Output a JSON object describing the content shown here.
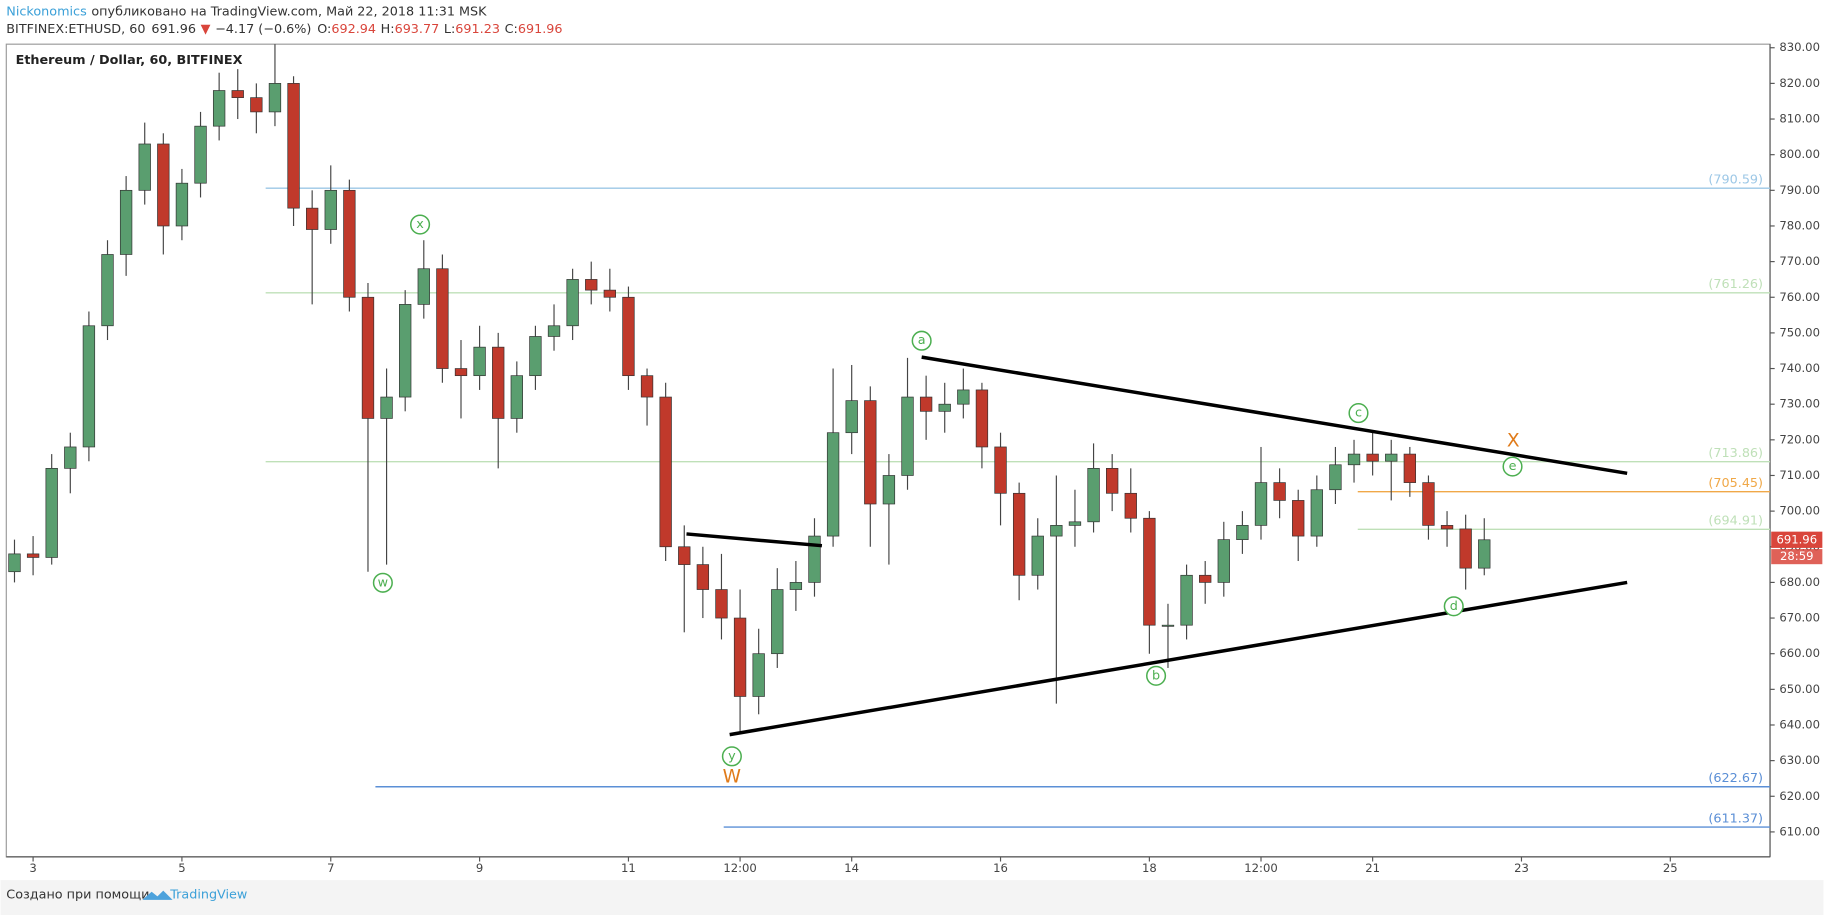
{
  "header": {
    "author": "Nickonomics",
    "published": "опубликовано на TradingView.com, Май 22, 2018 11:31 MSK",
    "symbol": "BITFINEX:ETHUSD, 60",
    "last": 691.96,
    "arrow": "▼",
    "change": "−4.17 (−0.6%)",
    "o_label": "O:",
    "open": 692.94,
    "h_label": "H:",
    "high": 693.77,
    "l_label": "L:",
    "low": 691.23,
    "c_label": "C:",
    "close": 691.96
  },
  "chart_data": {
    "type": "candlestick",
    "title": "Ethereum / Dollar, 60, BITFINEX",
    "up_color": "#5a9e6f",
    "down_color": "#c0392b",
    "wick_color": "#444444",
    "x": [
      2.75,
      3,
      3.25,
      3.5,
      3.75,
      4,
      4.25,
      4.5,
      4.75,
      5,
      5.25,
      5.5,
      5.75,
      6,
      6.25,
      6.5,
      6.75,
      7,
      7.25,
      7.5,
      7.75,
      8,
      8.25,
      8.5,
      8.75,
      9,
      9.25,
      9.5,
      9.75,
      10,
      10.25,
      10.5,
      10.75,
      11,
      11.25,
      11.5,
      11.75,
      12,
      12.25,
      12.5,
      12.75,
      13,
      13.25,
      13.5,
      13.75,
      14,
      14.25,
      14.5,
      14.75,
      15,
      15.25,
      15.5,
      15.75,
      16,
      16.25,
      16.5,
      16.75,
      17,
      17.25,
      17.5,
      17.75,
      18,
      18.25,
      18.5,
      18.75,
      19,
      19.25,
      19.5,
      19.75,
      20,
      20.25,
      20.5,
      20.75,
      21,
      21.25,
      21.5,
      21.75,
      22,
      22.25,
      22.5
    ],
    "ohlc": [
      [
        683,
        692,
        680,
        688
      ],
      [
        688,
        693,
        682,
        687
      ],
      [
        687,
        716,
        685,
        712
      ],
      [
        712,
        722,
        705,
        718
      ],
      [
        718,
        756,
        714,
        752
      ],
      [
        752,
        776,
        748,
        772
      ],
      [
        772,
        794,
        766,
        790
      ],
      [
        790,
        809,
        786,
        803
      ],
      [
        803,
        806,
        772,
        780
      ],
      [
        780,
        796,
        776,
        792
      ],
      [
        792,
        812,
        788,
        808
      ],
      [
        808,
        823,
        804,
        818
      ],
      [
        818,
        824,
        810,
        816
      ],
      [
        816,
        820,
        806,
        812
      ],
      [
        812,
        831,
        808,
        820
      ],
      [
        820,
        822,
        780,
        785
      ],
      [
        785,
        790,
        758,
        779
      ],
      [
        779,
        797,
        775,
        790
      ],
      [
        790,
        793,
        756,
        760
      ],
      [
        760,
        764,
        683,
        726
      ],
      [
        726,
        740,
        685,
        732
      ],
      [
        732,
        762,
        728,
        758
      ],
      [
        758,
        776,
        754,
        768
      ],
      [
        768,
        772,
        736,
        740
      ],
      [
        740,
        748,
        726,
        738
      ],
      [
        738,
        752,
        734,
        746
      ],
      [
        746,
        750,
        712,
        726
      ],
      [
        726,
        742,
        722,
        738
      ],
      [
        738,
        752,
        734,
        749
      ],
      [
        749,
        758,
        745,
        752
      ],
      [
        752,
        768,
        748,
        765
      ],
      [
        765,
        770,
        758,
        762
      ],
      [
        762,
        768,
        756,
        760
      ],
      [
        760,
        763,
        734,
        738
      ],
      [
        738,
        740,
        724,
        732
      ],
      [
        732,
        736,
        686,
        690
      ],
      [
        690,
        696,
        666,
        685
      ],
      [
        685,
        690,
        670,
        678
      ],
      [
        678,
        688,
        664,
        670
      ],
      [
        670,
        678,
        638,
        648
      ],
      [
        648,
        667,
        643,
        660
      ],
      [
        660,
        684,
        656,
        678
      ],
      [
        678,
        686,
        672,
        680
      ],
      [
        680,
        698,
        676,
        693
      ],
      [
        693,
        740,
        690,
        722
      ],
      [
        722,
        741,
        716,
        731
      ],
      [
        731,
        735,
        690,
        702
      ],
      [
        702,
        716,
        685,
        710
      ],
      [
        710,
        743,
        706,
        732
      ],
      [
        732,
        738,
        720,
        728
      ],
      [
        728,
        736,
        722,
        730
      ],
      [
        730,
        740,
        726,
        734
      ],
      [
        734,
        736,
        712,
        718
      ],
      [
        718,
        722,
        696,
        705
      ],
      [
        705,
        708,
        675,
        682
      ],
      [
        682,
        698,
        678,
        693
      ],
      [
        693,
        710,
        646,
        696
      ],
      [
        696,
        706,
        690,
        697
      ],
      [
        697,
        719,
        694,
        712
      ],
      [
        712,
        716,
        700,
        705
      ],
      [
        705,
        712,
        694,
        698
      ],
      [
        698,
        700,
        660,
        668
      ],
      [
        668,
        674,
        656,
        668
      ],
      [
        668,
        685,
        664,
        682
      ],
      [
        682,
        686,
        674,
        680
      ],
      [
        680,
        697,
        676,
        692
      ],
      [
        692,
        700,
        688,
        696
      ],
      [
        696,
        718,
        692,
        708
      ],
      [
        708,
        712,
        698,
        703
      ],
      [
        703,
        706,
        686,
        693
      ],
      [
        693,
        710,
        690,
        706
      ],
      [
        706,
        718,
        702,
        713
      ],
      [
        713,
        720,
        708,
        716
      ],
      [
        716,
        722,
        710,
        714
      ],
      [
        714,
        720,
        703,
        716
      ],
      [
        716,
        718,
        704,
        708
      ],
      [
        708,
        710,
        692,
        696
      ],
      [
        696,
        700,
        690,
        695
      ],
      [
        695,
        699,
        678,
        684
      ],
      [
        684,
        698,
        682,
        691.96
      ]
    ],
    "xlim": [
      2.64,
      26.34
    ],
    "ylim": [
      603,
      831
    ],
    "xticks": [
      3,
      5,
      7,
      9,
      11,
      {
        "value": 12.5,
        "label": "12:00"
      },
      14,
      16,
      18,
      {
        "value": 19.5,
        "label": "12:00"
      },
      21,
      23,
      25
    ],
    "yticks": [
      {
        "value": 610,
        "label": "610.00"
      },
      {
        "value": 620,
        "label": "620.00"
      },
      {
        "value": 630,
        "label": "630.00"
      },
      {
        "value": 640,
        "label": "640.00"
      },
      {
        "value": 650,
        "label": "650.00"
      },
      {
        "value": 660,
        "label": "660.00"
      },
      {
        "value": 670,
        "label": "670.00"
      },
      {
        "value": 680,
        "label": "680.00"
      },
      {
        "value": 690,
        "label": "690.00"
      },
      {
        "value": 700,
        "label": "700.00"
      },
      {
        "value": 710,
        "label": "710.00"
      },
      {
        "value": 720,
        "label": "720.00"
      },
      {
        "value": 730,
        "label": "730.00"
      },
      {
        "value": 740,
        "label": "740.00"
      },
      {
        "value": 750,
        "label": "750.00"
      },
      {
        "value": 760,
        "label": "760.00"
      },
      {
        "value": 770,
        "label": "770.00"
      },
      {
        "value": 780,
        "label": "780.00"
      },
      {
        "value": 790,
        "label": "790.00"
      },
      {
        "value": 800,
        "label": "800.00"
      },
      {
        "value": 810,
        "label": "810.00"
      },
      {
        "value": 820,
        "label": "820.00"
      },
      {
        "value": 830,
        "label": "830.00"
      }
    ],
    "grid": false,
    "countdown": "28:59",
    "price_tag_color": "#d9453b",
    "levels": [
      {
        "value": 790.59,
        "label": "(790.59)",
        "start": 6.125,
        "color": "#9cc7e6"
      },
      {
        "value": 761.26,
        "label": "(761.26)",
        "start": 6.125,
        "color": "#bfe0b8"
      },
      {
        "value": 713.86,
        "label": "(713.86)",
        "start": 6.125,
        "color": "#bfe0b8"
      },
      {
        "value": 705.45,
        "label": "(705.45)",
        "start": 20.8,
        "color": "#f0a848"
      },
      {
        "value": 694.91,
        "label": "(694.91)",
        "start": 20.8,
        "color": "#bfe0b8"
      },
      {
        "value": 622.67,
        "label": "(622.67)",
        "start": 7.6,
        "color": "#5b8fd6"
      },
      {
        "value": 611.37,
        "label": "(611.37)",
        "start": 12.28,
        "color": "#5b8fd6"
      }
    ],
    "trendlines": [
      {
        "x": [
          14.94,
          24.42
        ],
        "y": [
          743.2,
          710.6
        ]
      },
      {
        "x": [
          12.36,
          24.42
        ],
        "y": [
          637.3,
          680
        ]
      },
      {
        "x": [
          11.78,
          13.6
        ],
        "y": [
          693.6,
          690.3
        ]
      }
    ],
    "wave_labels": [
      {
        "text": "x",
        "x": 8.2,
        "y": 780.4,
        "color": "#4caf50",
        "circled": true
      },
      {
        "text": "w",
        "x": 7.7,
        "y": 679.9,
        "color": "#4caf50",
        "circled": true
      },
      {
        "text": "y",
        "x": 12.39,
        "y": 631.2,
        "color": "#4caf50",
        "circled": true
      },
      {
        "text": "a",
        "x": 14.94,
        "y": 747.8,
        "color": "#4caf50",
        "circled": true
      },
      {
        "text": "b",
        "x": 18.09,
        "y": 653.8,
        "color": "#4caf50",
        "circled": true
      },
      {
        "text": "c",
        "x": 20.81,
        "y": 727.5,
        "color": "#4caf50",
        "circled": true
      },
      {
        "text": "d",
        "x": 22.09,
        "y": 673.3,
        "color": "#4caf50",
        "circled": true
      },
      {
        "text": "e",
        "x": 22.88,
        "y": 712.5,
        "color": "#4caf50",
        "circled": true
      },
      {
        "text": "W",
        "x": 12.39,
        "y": 625.7,
        "color": "#e07b1a",
        "circled": false
      },
      {
        "text": "X",
        "x": 22.89,
        "y": 720,
        "color": "#e07b1a",
        "circled": false
      }
    ]
  },
  "footer": {
    "text": "Создано при помощи",
    "brand": "TradingView"
  }
}
